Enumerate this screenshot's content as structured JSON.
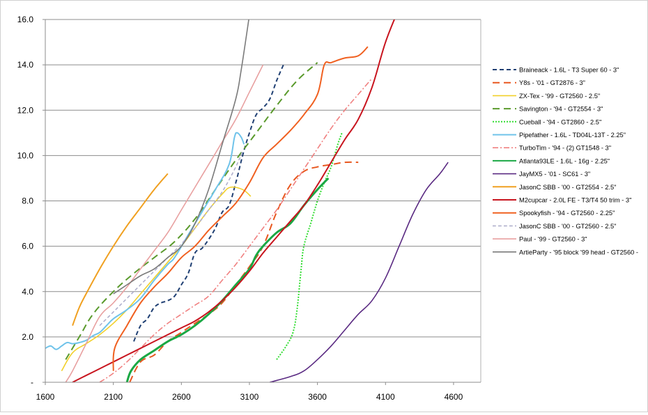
{
  "chart_data": {
    "type": "line",
    "title": "",
    "xlabel": "",
    "ylabel": "",
    "xlim": [
      1600,
      4800
    ],
    "ylim": [
      0,
      16
    ],
    "x_ticks": [
      1600,
      2100,
      2600,
      3100,
      3600,
      4100,
      4600
    ],
    "x_tick_labels": [
      "1600",
      "2100",
      "2600",
      "3100",
      "3600",
      "4100",
      "4600"
    ],
    "y_ticks": [
      0,
      2,
      4,
      6,
      8,
      10,
      12,
      14,
      16
    ],
    "y_tick_labels": [
      "-",
      "2.0",
      "4.0",
      "6.0",
      "8.0",
      "10.0",
      "12.0",
      "14.0",
      "16.0"
    ],
    "grid": "horizontal",
    "legend_position": "right",
    "series": [
      {
        "name": "Braineack - 1.6L - T3 Super 60 - 3\"",
        "color": "#1f3f73",
        "dash": "dashed",
        "width": 2,
        "points": [
          [
            2250,
            1.8
          ],
          [
            2300,
            2.5
          ],
          [
            2350,
            2.8
          ],
          [
            2400,
            3.3
          ],
          [
            2450,
            3.5
          ],
          [
            2500,
            3.6
          ],
          [
            2550,
            3.8
          ],
          [
            2600,
            4.3
          ],
          [
            2650,
            4.8
          ],
          [
            2700,
            5.7
          ],
          [
            2750,
            5.9
          ],
          [
            2800,
            6.3
          ],
          [
            2850,
            6.8
          ],
          [
            2900,
            7.5
          ],
          [
            2950,
            7.8
          ],
          [
            3000,
            8.8
          ],
          [
            3050,
            10.0
          ],
          [
            3100,
            11.0
          ],
          [
            3150,
            11.8
          ],
          [
            3200,
            12.1
          ],
          [
            3250,
            12.5
          ],
          [
            3300,
            13.3
          ],
          [
            3350,
            14.0
          ]
        ]
      },
      {
        "name": "Y8s - '01 - GT2876 - 3\"",
        "color": "#e8571f",
        "dash": "longdash",
        "width": 2,
        "points": [
          [
            2220,
            0
          ],
          [
            2300,
            0.9
          ],
          [
            2400,
            1.2
          ],
          [
            2500,
            1.8
          ],
          [
            2600,
            2.2
          ],
          [
            2700,
            2.6
          ],
          [
            2800,
            3.0
          ],
          [
            2900,
            3.5
          ],
          [
            3000,
            4.3
          ],
          [
            3100,
            5.1
          ],
          [
            3200,
            6.0
          ],
          [
            3300,
            7.5
          ],
          [
            3400,
            8.7
          ],
          [
            3500,
            9.3
          ],
          [
            3600,
            9.5
          ],
          [
            3700,
            9.6
          ],
          [
            3800,
            9.7
          ],
          [
            3900,
            9.7
          ]
        ]
      },
      {
        "name": "ZX-Tex - '99 - GT2560 - 2.5\"",
        "color": "#f2d02a",
        "dash": "solid",
        "width": 1.6,
        "points": [
          [
            1720,
            0.5
          ],
          [
            1800,
            1.3
          ],
          [
            1900,
            1.7
          ],
          [
            2000,
            2.1
          ],
          [
            2100,
            2.6
          ],
          [
            2200,
            3.2
          ],
          [
            2300,
            3.9
          ],
          [
            2400,
            4.6
          ],
          [
            2500,
            5.3
          ],
          [
            2600,
            6.0
          ],
          [
            2700,
            6.8
          ],
          [
            2800,
            7.6
          ],
          [
            2900,
            8.3
          ],
          [
            2960,
            8.6
          ],
          [
            3050,
            8.5
          ],
          [
            3110,
            8.2
          ]
        ]
      },
      {
        "name": "Savington - '94 - GT2554 - 3\"",
        "color": "#5a9a2c",
        "dash": "longdash",
        "width": 2,
        "points": [
          [
            1750,
            1.0
          ],
          [
            1850,
            2.0
          ],
          [
            1950,
            3.0
          ],
          [
            2100,
            4.0
          ],
          [
            2250,
            4.8
          ],
          [
            2400,
            5.5
          ],
          [
            2550,
            6.2
          ],
          [
            2700,
            7.2
          ],
          [
            2850,
            8.5
          ],
          [
            3000,
            9.8
          ],
          [
            3150,
            11.0
          ],
          [
            3300,
            12.2
          ],
          [
            3450,
            13.3
          ],
          [
            3600,
            14.1
          ]
        ]
      },
      {
        "name": "Cueball - '94 - GT2860 - 2.5\"",
        "color": "#33dd33",
        "dash": "dotted",
        "width": 2,
        "points": [
          [
            3300,
            1.0
          ],
          [
            3370,
            1.6
          ],
          [
            3420,
            2.2
          ],
          [
            3450,
            3.2
          ],
          [
            3480,
            5.0
          ],
          [
            3500,
            6.0
          ],
          [
            3550,
            7.0
          ],
          [
            3600,
            8.0
          ],
          [
            3650,
            8.8
          ],
          [
            3700,
            9.5
          ],
          [
            3750,
            10.5
          ],
          [
            3780,
            11.0
          ]
        ]
      },
      {
        "name": "Pipefather - 1.6L - TD04L-13T - 2.25\"",
        "color": "#6fc3ea",
        "dash": "solid",
        "width": 2,
        "points": [
          [
            1600,
            1.5
          ],
          [
            1640,
            1.6
          ],
          [
            1680,
            1.45
          ],
          [
            1720,
            1.6
          ],
          [
            1760,
            1.75
          ],
          [
            1800,
            1.7
          ],
          [
            1850,
            1.75
          ],
          [
            1900,
            1.85
          ],
          [
            1950,
            2.05
          ],
          [
            2000,
            2.2
          ],
          [
            2050,
            2.5
          ],
          [
            2100,
            2.8
          ],
          [
            2200,
            3.2
          ],
          [
            2300,
            3.7
          ],
          [
            2400,
            4.5
          ],
          [
            2500,
            5.2
          ],
          [
            2550,
            5.5
          ],
          [
            2650,
            6.5
          ],
          [
            2750,
            7.5
          ],
          [
            2850,
            8.5
          ],
          [
            2950,
            9.6
          ],
          [
            2990,
            10.8
          ],
          [
            3010,
            11.0
          ],
          [
            3040,
            10.8
          ],
          [
            3060,
            10.5
          ]
        ]
      },
      {
        "name": "TurboTim - '94 - (2) GT1548 - 3\"",
        "color": "#f08080",
        "dash": "dashdot",
        "width": 1.6,
        "points": [
          [
            2000,
            0
          ],
          [
            2100,
            0.4
          ],
          [
            2200,
            0.9
          ],
          [
            2300,
            1.5
          ],
          [
            2400,
            2.1
          ],
          [
            2500,
            2.6
          ],
          [
            2600,
            3.0
          ],
          [
            2700,
            3.4
          ],
          [
            2800,
            3.8
          ],
          [
            2900,
            4.5
          ],
          [
            3000,
            5.2
          ],
          [
            3100,
            6.0
          ],
          [
            3200,
            6.8
          ],
          [
            3300,
            7.6
          ],
          [
            3400,
            8.5
          ],
          [
            3500,
            9.4
          ],
          [
            3600,
            10.3
          ],
          [
            3700,
            11.2
          ],
          [
            3800,
            12.0
          ],
          [
            3900,
            12.7
          ],
          [
            4000,
            13.4
          ]
        ]
      },
      {
        "name": "Atlanta93LE - 1.6L - 16g - 2.25\"",
        "color": "#1aa844",
        "dash": "solid",
        "width": 3,
        "points": [
          [
            2200,
            0
          ],
          [
            2230,
            0.5
          ],
          [
            2300,
            1.0
          ],
          [
            2400,
            1.4
          ],
          [
            2500,
            1.8
          ],
          [
            2600,
            2.1
          ],
          [
            2700,
            2.5
          ],
          [
            2800,
            3.0
          ],
          [
            2900,
            3.6
          ],
          [
            3000,
            4.3
          ],
          [
            3100,
            5.0
          ],
          [
            3150,
            5.6
          ],
          [
            3200,
            6.0
          ],
          [
            3300,
            6.6
          ],
          [
            3400,
            7.0
          ],
          [
            3500,
            7.8
          ],
          [
            3600,
            8.5
          ],
          [
            3680,
            9.0
          ]
        ]
      },
      {
        "name": "JayMX5 - '01 - SC61 - 3\"",
        "color": "#5a2a82",
        "dash": "solid",
        "width": 1.6,
        "points": [
          [
            3250,
            0
          ],
          [
            3400,
            0.25
          ],
          [
            3500,
            0.5
          ],
          [
            3600,
            1.0
          ],
          [
            3700,
            1.6
          ],
          [
            3800,
            2.3
          ],
          [
            3900,
            3.0
          ],
          [
            4000,
            3.6
          ],
          [
            4100,
            4.6
          ],
          [
            4200,
            6.0
          ],
          [
            4300,
            7.4
          ],
          [
            4400,
            8.5
          ],
          [
            4500,
            9.2
          ],
          [
            4560,
            9.7
          ]
        ]
      },
      {
        "name": "JasonC SBB - '00 - GT2554 - 2.5\"",
        "color": "#f0a020",
        "dash": "solid",
        "width": 2,
        "points": [
          [
            1800,
            2.5
          ],
          [
            1850,
            3.3
          ],
          [
            1900,
            3.9
          ],
          [
            2000,
            5.0
          ],
          [
            2100,
            6.0
          ],
          [
            2200,
            6.9
          ],
          [
            2300,
            7.7
          ],
          [
            2400,
            8.5
          ],
          [
            2500,
            9.2
          ]
        ]
      },
      {
        "name": "M2cupcar - 2.0L FE - T3/T4 50 trim - 3\"",
        "color": "#c8141e",
        "dash": "solid",
        "width": 2,
        "points": [
          [
            1800,
            0
          ],
          [
            1900,
            0.3
          ],
          [
            2000,
            0.6
          ],
          [
            2100,
            0.9
          ],
          [
            2200,
            1.2
          ],
          [
            2300,
            1.5
          ],
          [
            2400,
            1.8
          ],
          [
            2500,
            2.1
          ],
          [
            2600,
            2.4
          ],
          [
            2700,
            2.7
          ],
          [
            2800,
            3.1
          ],
          [
            2900,
            3.6
          ],
          [
            3000,
            4.2
          ],
          [
            3100,
            4.9
          ],
          [
            3200,
            5.7
          ],
          [
            3300,
            6.4
          ],
          [
            3400,
            7.1
          ],
          [
            3500,
            7.8
          ],
          [
            3600,
            8.7
          ],
          [
            3700,
            9.7
          ],
          [
            3800,
            10.7
          ],
          [
            3900,
            11.6
          ],
          [
            4000,
            13.0
          ],
          [
            4100,
            15.0
          ],
          [
            4200,
            16.5
          ]
        ]
      },
      {
        "name": "Spookyfish - '94 - GT2560 - 2.25\"",
        "color": "#f06020",
        "dash": "solid",
        "width": 2,
        "points": [
          [
            2100,
            0.5
          ],
          [
            2110,
            1.5
          ],
          [
            2200,
            2.5
          ],
          [
            2300,
            3.5
          ],
          [
            2400,
            4.2
          ],
          [
            2500,
            4.8
          ],
          [
            2600,
            5.5
          ],
          [
            2700,
            6.0
          ],
          [
            2800,
            6.7
          ],
          [
            2900,
            7.3
          ],
          [
            3000,
            7.9
          ],
          [
            3100,
            8.8
          ],
          [
            3200,
            9.9
          ],
          [
            3300,
            10.5
          ],
          [
            3400,
            11.1
          ],
          [
            3500,
            11.8
          ],
          [
            3600,
            12.7
          ],
          [
            3650,
            14.0
          ],
          [
            3700,
            14.1
          ],
          [
            3800,
            14.3
          ],
          [
            3900,
            14.4
          ],
          [
            3970,
            14.8
          ]
        ]
      },
      {
        "name": "JasonC SBB - '00 - GT2560 - 2.5\"",
        "color": "#b0b0cc",
        "dash": "dashed",
        "width": 1.6,
        "points": [
          [
            2000,
            2.5
          ],
          [
            2100,
            3.1
          ],
          [
            2200,
            3.7
          ],
          [
            2300,
            4.3
          ],
          [
            2400,
            4.9
          ],
          [
            2500,
            5.5
          ],
          [
            2600,
            6.1
          ],
          [
            2700,
            6.8
          ],
          [
            2800,
            7.6
          ],
          [
            2900,
            8.4
          ],
          [
            3000,
            9.5
          ],
          [
            3050,
            10.2
          ]
        ]
      },
      {
        "name": "Paul - '99 - GT2560 - 3\"",
        "color": "#e8a0a0",
        "dash": "solid",
        "width": 1.6,
        "points": [
          [
            1750,
            0
          ],
          [
            1800,
            0.5
          ],
          [
            1900,
            1.7
          ],
          [
            2000,
            2.9
          ],
          [
            2100,
            3.5
          ],
          [
            2200,
            4.2
          ],
          [
            2300,
            5.0
          ],
          [
            2400,
            5.8
          ],
          [
            2500,
            6.6
          ],
          [
            2600,
            7.6
          ],
          [
            2700,
            8.6
          ],
          [
            2800,
            9.6
          ],
          [
            2900,
            10.6
          ],
          [
            3000,
            11.6
          ],
          [
            3100,
            12.8
          ],
          [
            3200,
            14.0
          ]
        ]
      },
      {
        "name": "ArtieParty - '95 block '99 head - GT2560 -",
        "color": "#7a7a7a",
        "dash": "solid",
        "width": 1.6,
        "points": [
          [
            2100,
            3.9
          ],
          [
            2200,
            4.3
          ],
          [
            2300,
            4.7
          ],
          [
            2400,
            5.0
          ],
          [
            2500,
            5.5
          ],
          [
            2600,
            6.0
          ],
          [
            2700,
            7.0
          ],
          [
            2800,
            8.5
          ],
          [
            2900,
            10.5
          ],
          [
            3000,
            12.5
          ],
          [
            3040,
            13.8
          ],
          [
            3100,
            16.2
          ]
        ]
      }
    ]
  }
}
